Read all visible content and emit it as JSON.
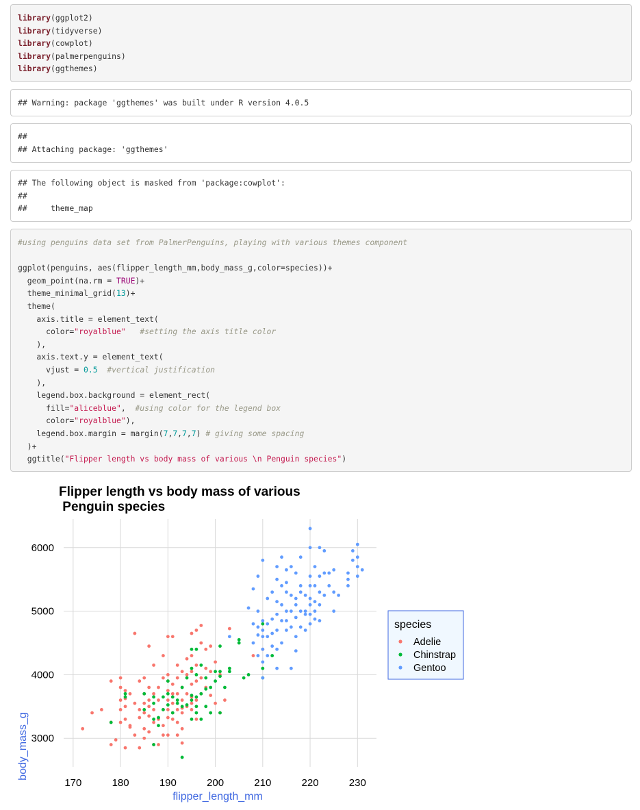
{
  "code_block_1": {
    "lines": [
      {
        "fn": "library",
        "arg": "(ggplot2)"
      },
      {
        "fn": "library",
        "arg": "(tidyverse)"
      },
      {
        "fn": "library",
        "arg": "(cowplot)"
      },
      {
        "fn": "library",
        "arg": "(palmerpenguins)"
      },
      {
        "fn": "library",
        "arg": "(ggthemes)"
      }
    ]
  },
  "output_1": {
    "text": "## Warning: package 'ggthemes' was built under R version 4.0.5"
  },
  "output_2": {
    "lines": [
      "##",
      "## Attaching package: 'ggthemes'"
    ]
  },
  "output_3": {
    "lines": [
      "## The following object is masked from 'package:cowplot':",
      "##",
      "##     theme_map"
    ]
  },
  "code_block_2": {
    "comment": "#using penguins data set from PalmerPenguins, playing with various themes component",
    "l1": "ggplot(penguins, aes(flipper_length_mm,body_mass_g,color=species))+",
    "l2a": "  geom_point(na.rm = ",
    "l2b": "TRUE",
    "l2c": ")+",
    "l3a": "  theme_minimal_grid(",
    "l3b": "13",
    "l3c": ")+",
    "l4": "  theme(",
    "l5": "    axis.title = element_text(",
    "l6a": "      color=",
    "l6b": "\"royalblue\"",
    "l6c": "   ",
    "l6d": "#setting the axis title color",
    "l7": "    ),",
    "l8": "    axis.text.y = element_text(",
    "l9a": "      vjust = ",
    "l9b": "0.5",
    "l9c": "  ",
    "l9d": "#vertical justification",
    "l10": "    ),",
    "l11": "    legend.box.background = element_rect(",
    "l12a": "      fill=",
    "l12b": "\"aliceblue\"",
    "l12c": ",  ",
    "l12d": "#using color for the legend box",
    "l13a": "      color=",
    "l13b": "\"royalblue\"",
    "l13c": "),",
    "l14a": "    legend.box.margin = margin(",
    "l14b": "7",
    "l14c": ",",
    "l14d": "7",
    "l14e": ",",
    "l14f": "7",
    "l14g": ",",
    "l14h": "7",
    "l14i": ") ",
    "l14j": "# giving some spacing",
    "l15": "  )+",
    "l16a": "  ggtitle(",
    "l16b": "\"Flipper length vs body mass of various \\n Penguin species\"",
    "l16c": ")"
  },
  "chart_data": {
    "type": "scatter",
    "title_line1": "Flipper length vs body mass of various",
    "title_line2": " Penguin species",
    "xlabel": "flipper_length_mm",
    "ylabel": "body_mass_g",
    "xlim": [
      168,
      234
    ],
    "ylim": [
      2550,
      6450
    ],
    "xticks": [
      170,
      180,
      190,
      200,
      210,
      220,
      230
    ],
    "yticks": [
      3000,
      4000,
      5000,
      6000
    ],
    "grid": true,
    "legend": {
      "title": "species",
      "position": "right",
      "background": "#f0f8ff",
      "border": "#4169e1"
    },
    "series": [
      {
        "name": "Adelie",
        "color": "#f8766d",
        "points": [
          [
            172,
            3150
          ],
          [
            174,
            3400
          ],
          [
            176,
            3450
          ],
          [
            178,
            3900
          ],
          [
            178,
            3250
          ],
          [
            178,
            2900
          ],
          [
            179,
            2975
          ],
          [
            180,
            3950
          ],
          [
            180,
            3800
          ],
          [
            180,
            3600
          ],
          [
            180,
            3450
          ],
          [
            180,
            3250
          ],
          [
            181,
            3750
          ],
          [
            181,
            3625
          ],
          [
            181,
            3300
          ],
          [
            181,
            2850
          ],
          [
            182,
            3700
          ],
          [
            182,
            3200
          ],
          [
            182,
            3175
          ],
          [
            183,
            4650
          ],
          [
            183,
            3550
          ],
          [
            183,
            3050
          ],
          [
            184,
            3900
          ],
          [
            184,
            3450
          ],
          [
            184,
            3325
          ],
          [
            184,
            2850
          ],
          [
            185,
            3950
          ],
          [
            185,
            3700
          ],
          [
            185,
            3550
          ],
          [
            185,
            3400
          ],
          [
            185,
            3150
          ],
          [
            185,
            3000
          ],
          [
            186,
            4450
          ],
          [
            186,
            3800
          ],
          [
            186,
            3500
          ],
          [
            186,
            3350
          ],
          [
            186,
            3100
          ],
          [
            187,
            4150
          ],
          [
            187,
            3700
          ],
          [
            187,
            3450
          ],
          [
            187,
            3250
          ],
          [
            187,
            2900
          ],
          [
            188,
            3800
          ],
          [
            188,
            3600
          ],
          [
            188,
            3300
          ],
          [
            188,
            2900
          ],
          [
            189,
            4300
          ],
          [
            189,
            3950
          ],
          [
            189,
            3450
          ],
          [
            189,
            3200
          ],
          [
            189,
            3050
          ],
          [
            190,
            4600
          ],
          [
            190,
            4000
          ],
          [
            190,
            3900
          ],
          [
            190,
            3750
          ],
          [
            190,
            3600
          ],
          [
            190,
            3450
          ],
          [
            190,
            3325
          ],
          [
            190,
            3050
          ],
          [
            191,
            4600
          ],
          [
            191,
            3850
          ],
          [
            191,
            3700
          ],
          [
            191,
            3550
          ],
          [
            191,
            3400
          ],
          [
            191,
            3300
          ],
          [
            192,
            4150
          ],
          [
            192,
            3950
          ],
          [
            192,
            3700
          ],
          [
            192,
            3450
          ],
          [
            192,
            3250
          ],
          [
            192,
            3050
          ],
          [
            193,
            4050
          ],
          [
            193,
            3800
          ],
          [
            193,
            3600
          ],
          [
            193,
            3400
          ],
          [
            193,
            3150
          ],
          [
            193,
            2925
          ],
          [
            194,
            4250
          ],
          [
            194,
            4000
          ],
          [
            194,
            3700
          ],
          [
            194,
            3500
          ],
          [
            195,
            4650
          ],
          [
            195,
            4300
          ],
          [
            195,
            4050
          ],
          [
            195,
            3850
          ],
          [
            195,
            3650
          ],
          [
            195,
            3450
          ],
          [
            196,
            4700
          ],
          [
            196,
            4150
          ],
          [
            196,
            3900
          ],
          [
            196,
            3600
          ],
          [
            196,
            3300
          ],
          [
            197,
            4775
          ],
          [
            197,
            4500
          ],
          [
            197,
            3950
          ],
          [
            197,
            3700
          ],
          [
            198,
            4400
          ],
          [
            198,
            4100
          ],
          [
            198,
            3800
          ],
          [
            199,
            4450
          ],
          [
            199,
            4050
          ],
          [
            199,
            3675
          ],
          [
            200,
            4200
          ],
          [
            200,
            3550
          ],
          [
            201,
            4000
          ],
          [
            201,
            3400
          ],
          [
            202,
            3600
          ],
          [
            203,
            4725
          ],
          [
            208,
            4300
          ],
          [
            210,
            4400
          ],
          [
            193,
            3475
          ],
          [
            186,
            3600
          ],
          [
            181,
            3500
          ],
          [
            195,
            3550
          ]
        ]
      },
      {
        "name": "Chinstrap",
        "color": "#00ba38",
        "points": [
          [
            178,
            3250
          ],
          [
            181,
            3700
          ],
          [
            181,
            3650
          ],
          [
            185,
            3700
          ],
          [
            185,
            3450
          ],
          [
            187,
            3550
          ],
          [
            187,
            3650
          ],
          [
            187,
            3300
          ],
          [
            187,
            2900
          ],
          [
            188,
            3325
          ],
          [
            188,
            3200
          ],
          [
            189,
            3650
          ],
          [
            189,
            3450
          ],
          [
            190,
            3525
          ],
          [
            190,
            3700
          ],
          [
            190,
            3900
          ],
          [
            191,
            3650
          ],
          [
            191,
            3400
          ],
          [
            192,
            3600
          ],
          [
            192,
            3550
          ],
          [
            193,
            3800
          ],
          [
            193,
            3500
          ],
          [
            193,
            2700
          ],
          [
            194,
            3950
          ],
          [
            194,
            3525
          ],
          [
            195,
            4400
          ],
          [
            195,
            4100
          ],
          [
            195,
            3675
          ],
          [
            195,
            3600
          ],
          [
            195,
            3300
          ],
          [
            196,
            4400
          ],
          [
            196,
            4000
          ],
          [
            196,
            3650
          ],
          [
            196,
            3500
          ],
          [
            196,
            3400
          ],
          [
            197,
            4150
          ],
          [
            197,
            3700
          ],
          [
            197,
            3300
          ],
          [
            198,
            3950
          ],
          [
            198,
            3775
          ],
          [
            198,
            3500
          ],
          [
            199,
            3800
          ],
          [
            199,
            3400
          ],
          [
            200,
            4050
          ],
          [
            200,
            3900
          ],
          [
            201,
            4450
          ],
          [
            201,
            4050
          ],
          [
            201,
            3975
          ],
          [
            201,
            3400
          ],
          [
            202,
            3800
          ],
          [
            203,
            4100
          ],
          [
            203,
            4050
          ],
          [
            205,
            4550
          ],
          [
            205,
            4500
          ],
          [
            206,
            3950
          ],
          [
            207,
            4000
          ],
          [
            210,
            4800
          ],
          [
            210,
            4100
          ],
          [
            212,
            4300
          ],
          [
            210,
            3950
          ]
        ]
      },
      {
        "name": "Gentoo",
        "color": "#619cff",
        "points": [
          [
            203,
            4600
          ],
          [
            207,
            5050
          ],
          [
            208,
            4800
          ],
          [
            208,
            5350
          ],
          [
            208,
            4500
          ],
          [
            209,
            4300
          ],
          [
            209,
            4750
          ],
          [
            209,
            5550
          ],
          [
            209,
            4625
          ],
          [
            210,
            5800
          ],
          [
            210,
            4850
          ],
          [
            210,
            4600
          ],
          [
            210,
            4400
          ],
          [
            210,
            4200
          ],
          [
            210,
            3950
          ],
          [
            211,
            5200
          ],
          [
            211,
            4800
          ],
          [
            211,
            4600
          ],
          [
            211,
            4300
          ],
          [
            212,
            5300
          ],
          [
            212,
            4875
          ],
          [
            212,
            4650
          ],
          [
            212,
            4450
          ],
          [
            213,
            5700
          ],
          [
            213,
            5500
          ],
          [
            213,
            5150
          ],
          [
            213,
            4700
          ],
          [
            213,
            4400
          ],
          [
            213,
            4100
          ],
          [
            214,
            5850
          ],
          [
            214,
            5400
          ],
          [
            214,
            5100
          ],
          [
            214,
            4850
          ],
          [
            214,
            4500
          ],
          [
            215,
            5650
          ],
          [
            215,
            5300
          ],
          [
            215,
            5000
          ],
          [
            215,
            4850
          ],
          [
            215,
            4700
          ],
          [
            216,
            5700
          ],
          [
            216,
            5250
          ],
          [
            216,
            5000
          ],
          [
            216,
            4750
          ],
          [
            216,
            4100
          ],
          [
            217,
            5600
          ],
          [
            217,
            5200
          ],
          [
            217,
            4900
          ],
          [
            217,
            4600
          ],
          [
            217,
            4375
          ],
          [
            218,
            5850
          ],
          [
            218,
            5400
          ],
          [
            218,
            5300
          ],
          [
            218,
            5000
          ],
          [
            218,
            4750
          ],
          [
            219,
            5250
          ],
          [
            219,
            5000
          ],
          [
            219,
            4700
          ],
          [
            220,
            6300
          ],
          [
            220,
            6000
          ],
          [
            220,
            5550
          ],
          [
            220,
            5400
          ],
          [
            220,
            5200
          ],
          [
            220,
            5100
          ],
          [
            220,
            4950
          ],
          [
            220,
            4800
          ],
          [
            221,
            5700
          ],
          [
            221,
            5400
          ],
          [
            221,
            5000
          ],
          [
            221,
            4875
          ],
          [
            222,
            6000
          ],
          [
            222,
            5550
          ],
          [
            222,
            5300
          ],
          [
            222,
            4850
          ],
          [
            223,
            5950
          ],
          [
            223,
            5600
          ],
          [
            223,
            5250
          ],
          [
            224,
            5600
          ],
          [
            224,
            5400
          ],
          [
            225,
            5650
          ],
          [
            225,
            5000
          ],
          [
            226,
            5250
          ],
          [
            228,
            5600
          ],
          [
            228,
            5400
          ],
          [
            229,
            5950
          ],
          [
            229,
            5800
          ],
          [
            230,
            6050
          ],
          [
            230,
            5850
          ],
          [
            230,
            5700
          ],
          [
            230,
            5550
          ],
          [
            231,
            5650
          ],
          [
            210,
            4700
          ],
          [
            209,
            5000
          ],
          [
            213,
            4950
          ],
          [
            215,
            5450
          ],
          [
            217,
            5100
          ],
          [
            219,
            4950
          ],
          [
            221,
            5150
          ],
          [
            222,
            5100
          ],
          [
            225,
            5300
          ],
          [
            228,
            5500
          ]
        ]
      }
    ]
  }
}
